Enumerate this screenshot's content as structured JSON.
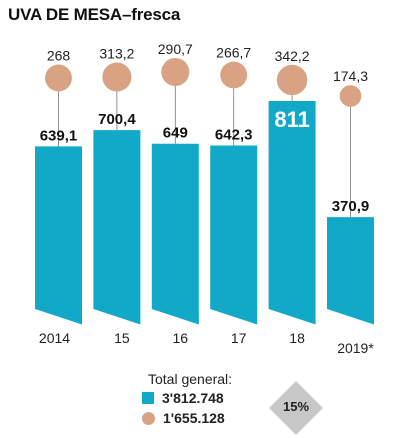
{
  "title_main": "UVA DE MESA",
  "title_sep": "–",
  "title_sub": "fresca",
  "chart_data": {
    "type": "bar",
    "categories": [
      "2014",
      "15",
      "16",
      "17",
      "18",
      "2019*"
    ],
    "series": [
      {
        "values": [
          639.1,
          700.4,
          649,
          642.3,
          811,
          370.9
        ],
        "color": "#12a9c8",
        "labels": [
          "639,1",
          "700,4",
          "649",
          "642,3",
          "811",
          "370,9"
        ]
      },
      {
        "values": [
          268,
          313.2,
          290.7,
          266.7,
          342.2,
          174.3
        ],
        "color": "#d9a383",
        "labels": [
          "268",
          "313,2",
          "290,7",
          "266,7",
          "342,2",
          "174,3"
        ]
      }
    ],
    "highlight_index": 4,
    "ylim": [
      0,
      811
    ]
  },
  "legend": {
    "title": "Total general:",
    "bars_total": "3'812.748",
    "circles_total": "1'655.128"
  },
  "badge": {
    "text": "15%"
  }
}
